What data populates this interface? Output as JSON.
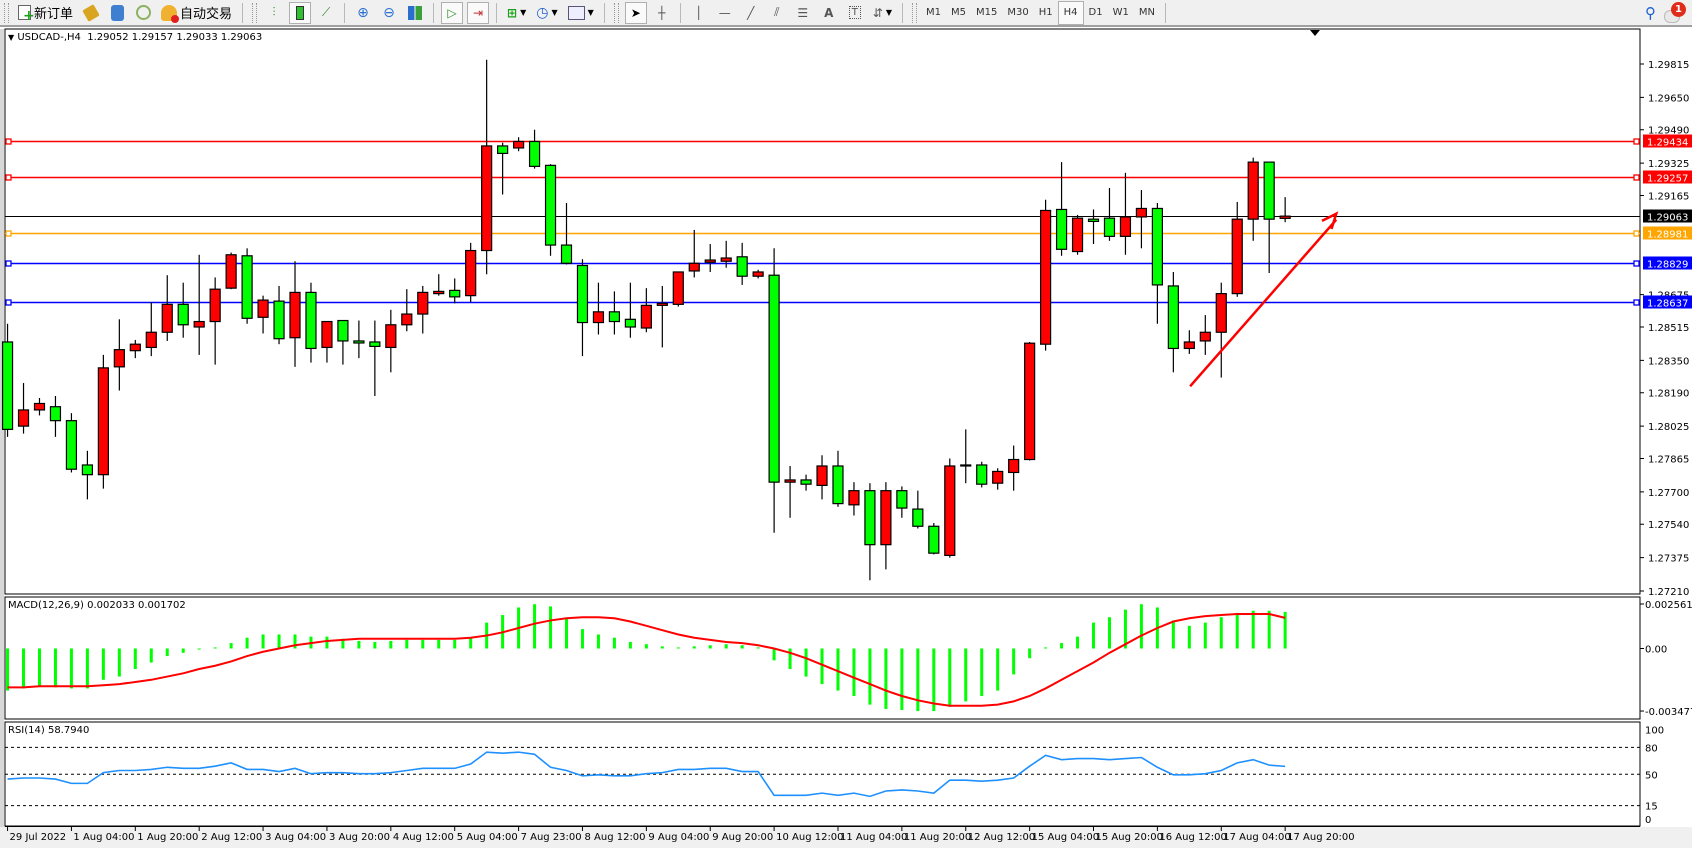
{
  "toolbar": {
    "new_order_label": "新订单",
    "auto_trading_label": "自动交易",
    "timeframes": [
      "M1",
      "M5",
      "M15",
      "M30",
      "H1",
      "H4",
      "D1",
      "W1",
      "MN"
    ],
    "active_timeframe": "H4",
    "notification_count": "1",
    "text_tool_label": "A",
    "text_label_tool": "T"
  },
  "chart": {
    "symbol": "USDCAD-,H4",
    "ohlc_readout": "1.29052 1.29157 1.29033 1.29063"
  },
  "colors": {
    "bull_candle": "#ff0000",
    "bear_candle": "#00ff00",
    "macd_histogram": "#00ff00",
    "macd_signal": "#ff0000",
    "rsi_line": "#1e90ff",
    "arrow": "#ff0000"
  },
  "chart_data": [
    {
      "type": "candlestick",
      "symbol": "USDCAD-",
      "timeframe": "H4",
      "ylim": [
        1.2721,
        1.29815
      ],
      "y_tick_labels": [
        "1.29815",
        "1.29650",
        "1.29490",
        "1.29325",
        "1.29165",
        "1.28675",
        "1.28515",
        "1.28350",
        "1.28190",
        "1.28025",
        "1.27865",
        "1.27700",
        "1.27540",
        "1.27375",
        "1.27210"
      ],
      "x_tick_labels": [
        "29 Jul 2022",
        "1 Aug 04:00",
        "1 Aug 20:00",
        "2 Aug 12:00",
        "3 Aug 04:00",
        "3 Aug 20:00",
        "4 Aug 12:00",
        "5 Aug 04:00",
        "7 Aug 23:00",
        "8 Aug 12:00",
        "9 Aug 04:00",
        "9 Aug 20:00",
        "10 Aug 12:00",
        "11 Aug 04:00",
        "11 Aug 20:00",
        "12 Aug 12:00",
        "15 Aug 04:00",
        "15 Aug 20:00",
        "16 Aug 12:00",
        "17 Aug 04:00",
        "17 Aug 20:00"
      ],
      "ohlc": [
        [
          1.28441,
          1.28531,
          1.27972,
          1.28009
        ],
        [
          1.28025,
          1.28238,
          1.27988,
          1.28105
        ],
        [
          1.28105,
          1.28164,
          1.28078,
          1.28137
        ],
        [
          1.28121,
          1.28174,
          1.27972,
          1.28052
        ],
        [
          1.28052,
          1.28089,
          1.27796,
          1.27812
        ],
        [
          1.27833,
          1.27903,
          1.27663,
          1.27785
        ],
        [
          1.27785,
          1.28377,
          1.27716,
          1.28313
        ],
        [
          1.28318,
          1.28553,
          1.28201,
          1.28403
        ],
        [
          1.28398,
          1.28451,
          1.28361,
          1.2843
        ],
        [
          1.28414,
          1.28638,
          1.28371,
          1.28489
        ],
        [
          1.28489,
          1.28771,
          1.28446,
          1.28627
        ],
        [
          1.28627,
          1.28734,
          1.28462,
          1.28526
        ],
        [
          1.28515,
          1.28872,
          1.28377,
          1.28542
        ],
        [
          1.28542,
          1.2876,
          1.28329,
          1.28702
        ],
        [
          1.28707,
          1.28883,
          1.28702,
          1.28872
        ],
        [
          1.28867,
          1.28904,
          1.28531,
          1.28558
        ],
        [
          1.28563,
          1.2867,
          1.28483,
          1.28648
        ],
        [
          1.28643,
          1.28718,
          1.2843,
          1.28457
        ],
        [
          1.28462,
          1.2884,
          1.28318,
          1.28686
        ],
        [
          1.28686,
          1.28734,
          1.28339,
          1.28409
        ],
        [
          1.28414,
          1.28542,
          1.28339,
          1.28542
        ],
        [
          1.28547,
          1.28547,
          1.28329,
          1.28446
        ],
        [
          1.28446,
          1.28547,
          1.28361,
          1.28436
        ],
        [
          1.28441,
          1.28547,
          1.28174,
          1.28419
        ],
        [
          1.28414,
          1.286,
          1.28291,
          1.28526
        ],
        [
          1.28526,
          1.28702,
          1.28494,
          1.28579
        ],
        [
          1.28579,
          1.28718,
          1.28483,
          1.28686
        ],
        [
          1.2868,
          1.28776,
          1.2867,
          1.28691
        ],
        [
          1.28696,
          1.28755,
          1.28632,
          1.28664
        ],
        [
          1.2867,
          1.28931,
          1.28638,
          1.28893
        ],
        [
          1.28893,
          1.29836,
          1.28776,
          1.2941
        ],
        [
          1.2941,
          1.29426,
          1.2917,
          1.29373
        ],
        [
          1.294,
          1.29453,
          1.29384,
          1.29432
        ],
        [
          1.29432,
          1.2949,
          1.29298,
          1.29309
        ],
        [
          1.29314,
          1.2932,
          1.28867,
          1.2892
        ],
        [
          1.2892,
          1.29128,
          1.28824,
          1.2883
        ],
        [
          1.28819,
          1.2885,
          1.28371,
          1.28537
        ],
        [
          1.28537,
          1.28734,
          1.28478,
          1.2859
        ],
        [
          1.2859,
          1.28691,
          1.28478,
          1.28542
        ],
        [
          1.28553,
          1.28734,
          1.28462,
          1.28515
        ],
        [
          1.2851,
          1.28707,
          1.28489,
          1.28622
        ],
        [
          1.28622,
          1.28718,
          1.28414,
          1.28632
        ],
        [
          1.28627,
          1.28787,
          1.28616,
          1.28787
        ],
        [
          1.28792,
          1.28995,
          1.2876,
          1.2883
        ],
        [
          1.28835,
          1.28925,
          1.28787,
          1.28846
        ],
        [
          1.2884,
          1.28941,
          1.28808,
          1.28856
        ],
        [
          1.28862,
          1.28931,
          1.28723,
          1.28766
        ],
        [
          1.28766,
          1.28798,
          1.28755,
          1.28787
        ],
        [
          1.28771,
          1.28904,
          1.27498,
          1.27748
        ],
        [
          1.27748,
          1.27828,
          1.27572,
          1.27759
        ],
        [
          1.27759,
          1.27785,
          1.27706,
          1.27738
        ],
        [
          1.27732,
          1.27881,
          1.27663,
          1.27828
        ],
        [
          1.27828,
          1.27903,
          1.27626,
          1.27642
        ],
        [
          1.27636,
          1.27748,
          1.27583,
          1.27706
        ],
        [
          1.27706,
          1.27743,
          1.27263,
          1.27439
        ],
        [
          1.27439,
          1.27748,
          1.27317,
          1.27706
        ],
        [
          1.27706,
          1.27727,
          1.27572,
          1.2762
        ],
        [
          1.27615,
          1.27706,
          1.27519,
          1.2753
        ],
        [
          1.2753,
          1.27546,
          1.27391,
          1.27397
        ],
        [
          1.27386,
          1.27865,
          1.27375,
          1.27828
        ],
        [
          1.27828,
          1.28009,
          1.27743,
          1.27833
        ],
        [
          1.27833,
          1.27849,
          1.27722,
          1.27738
        ],
        [
          1.27743,
          1.27817,
          1.27711,
          1.27801
        ],
        [
          1.27796,
          1.27929,
          1.27706,
          1.2786
        ],
        [
          1.2786,
          1.28441,
          1.27855,
          1.28435
        ],
        [
          1.2843,
          1.29144,
          1.28398,
          1.29091
        ],
        [
          1.29096,
          1.2933,
          1.28867,
          1.28899
        ],
        [
          1.28888,
          1.29069,
          1.28872,
          1.29053
        ],
        [
          1.29048,
          1.29096,
          1.28925,
          1.29037
        ],
        [
          1.29053,
          1.29202,
          1.28941,
          1.28963
        ],
        [
          1.28963,
          1.29277,
          1.28872,
          1.29059
        ],
        [
          1.29059,
          1.29192,
          1.28904,
          1.29101
        ],
        [
          1.29101,
          1.29128,
          1.28531,
          1.28723
        ],
        [
          1.28718,
          1.28787,
          1.28291,
          1.28409
        ],
        [
          1.28409,
          1.28499,
          1.28382,
          1.28441
        ],
        [
          1.28446,
          1.28574,
          1.28377,
          1.28489
        ],
        [
          1.28489,
          1.28734,
          1.28265,
          1.2868
        ],
        [
          1.2868,
          1.29133,
          1.28664,
          1.29048
        ],
        [
          1.29048,
          1.29352,
          1.28941,
          1.2933
        ],
        [
          1.2933,
          1.2933,
          1.28782,
          1.29048
        ],
        [
          1.29052,
          1.29157,
          1.29033,
          1.29063
        ]
      ],
      "bid_line": {
        "price": "1.29063",
        "color": "#000000"
      },
      "levels": [
        {
          "price": "1.29434",
          "color": "#ff0000"
        },
        {
          "price": "1.29257",
          "color": "#ff0000"
        },
        {
          "price": "1.28981",
          "color": "#ffa500"
        },
        {
          "price": "1.28829",
          "color": "#0000ff"
        },
        {
          "price": "1.28637",
          "color": "#0000ff"
        }
      ]
    },
    {
      "type": "bar",
      "title": "MACD(12,26,9) 0.002033 0.001702",
      "ylim": [
        -0.003477,
        0.002561
      ],
      "y_tick_labels": [
        "0.002561",
        "0.00",
        "-0.003477"
      ],
      "histogram": [
        -0.00234,
        -0.00222,
        -0.0021,
        -0.00216,
        -0.00222,
        -0.00222,
        -0.00174,
        -0.00156,
        -0.00114,
        -0.00078,
        -0.00042,
        -0.00024,
        -6e-05,
        6e-05,
        0.0003,
        0.0006,
        0.00078,
        0.00078,
        0.00078,
        0.00066,
        0.00066,
        0.00054,
        0.00042,
        0.00036,
        0.00042,
        0.00048,
        0.00048,
        0.00048,
        0.00048,
        0.0006,
        0.00144,
        0.00186,
        0.00228,
        0.00246,
        0.00234,
        0.00168,
        0.00108,
        0.00078,
        0.0006,
        0.00036,
        0.00024,
        0.00012,
        6e-05,
        0.00012,
        0.00018,
        0.00024,
        0.00018,
        6e-05,
        -0.00066,
        -0.00114,
        -0.00156,
        -0.00198,
        -0.00234,
        -0.00264,
        -0.00312,
        -0.00336,
        -0.00342,
        -0.00348,
        -0.00348,
        -0.00324,
        -0.00294,
        -0.00264,
        -0.00234,
        -0.00144,
        -0.00054,
        6e-05,
        0.0003,
        0.00066,
        0.00144,
        0.00174,
        0.00216,
        0.00246,
        0.00228,
        0.00156,
        0.00126,
        0.00144,
        0.00174,
        0.00198,
        0.0021,
        0.0021,
        0.002033
      ],
      "signal": [
        -0.00216,
        -0.00216,
        -0.0021,
        -0.0021,
        -0.0021,
        -0.0021,
        -0.00204,
        -0.00198,
        -0.00186,
        -0.00174,
        -0.00156,
        -0.00138,
        -0.00114,
        -0.00096,
        -0.00072,
        -0.00042,
        -0.00018,
        0,
        0.00018,
        0.0003,
        0.00042,
        0.00048,
        0.00054,
        0.00054,
        0.00054,
        0.00054,
        0.00054,
        0.00054,
        0.00054,
        0.0006,
        0.00072,
        0.0009,
        0.00114,
        0.00138,
        0.00156,
        0.00168,
        0.00174,
        0.00174,
        0.00168,
        0.0015,
        0.00126,
        0.00102,
        0.00078,
        0.0006,
        0.00048,
        0.00036,
        0.0003,
        0.00018,
        0,
        -0.00024,
        -0.00054,
        -0.0009,
        -0.00126,
        -0.00162,
        -0.00198,
        -0.00234,
        -0.00264,
        -0.00288,
        -0.00306,
        -0.00318,
        -0.00318,
        -0.00318,
        -0.00312,
        -0.00294,
        -0.00264,
        -0.00222,
        -0.00174,
        -0.00126,
        -0.00078,
        -0.00024,
        0.00024,
        0.00072,
        0.00114,
        0.0015,
        0.00168,
        0.0018,
        0.00186,
        0.00192,
        0.00192,
        0.00192,
        0.001702
      ]
    },
    {
      "type": "line",
      "title": "RSI(14) 58.7940",
      "ylim": [
        0,
        100
      ],
      "y_tick_labels": [
        "100",
        "80",
        "50",
        "15",
        "0"
      ],
      "levels": [
        80,
        50,
        15
      ],
      "values": [
        44.6,
        45.8,
        45.8,
        44.6,
        39.8,
        39.8,
        51.8,
        54.2,
        54.2,
        55.4,
        57.8,
        56.6,
        56.6,
        59,
        62.7,
        55.4,
        55.4,
        53,
        56.6,
        50.6,
        51.8,
        51.8,
        50.6,
        50.6,
        51.8,
        54.2,
        56.6,
        56.6,
        56.6,
        61.4,
        74.7,
        73.5,
        74.7,
        72.3,
        57.8,
        54.2,
        48.2,
        49.4,
        48.2,
        48.2,
        50.6,
        51.8,
        55.4,
        55.4,
        56.6,
        56.6,
        53,
        53,
        26.5,
        26.5,
        26.5,
        28.9,
        26.5,
        28.9,
        25.3,
        31.3,
        32.5,
        31.3,
        28.9,
        43.4,
        43.4,
        42.2,
        43.4,
        45.8,
        59,
        71.1,
        66.3,
        67.5,
        67.5,
        66.3,
        67.5,
        68.7,
        57.8,
        49.4,
        49.4,
        50.6,
        54.2,
        62.7,
        66.3,
        60.2,
        58.794
      ]
    }
  ]
}
